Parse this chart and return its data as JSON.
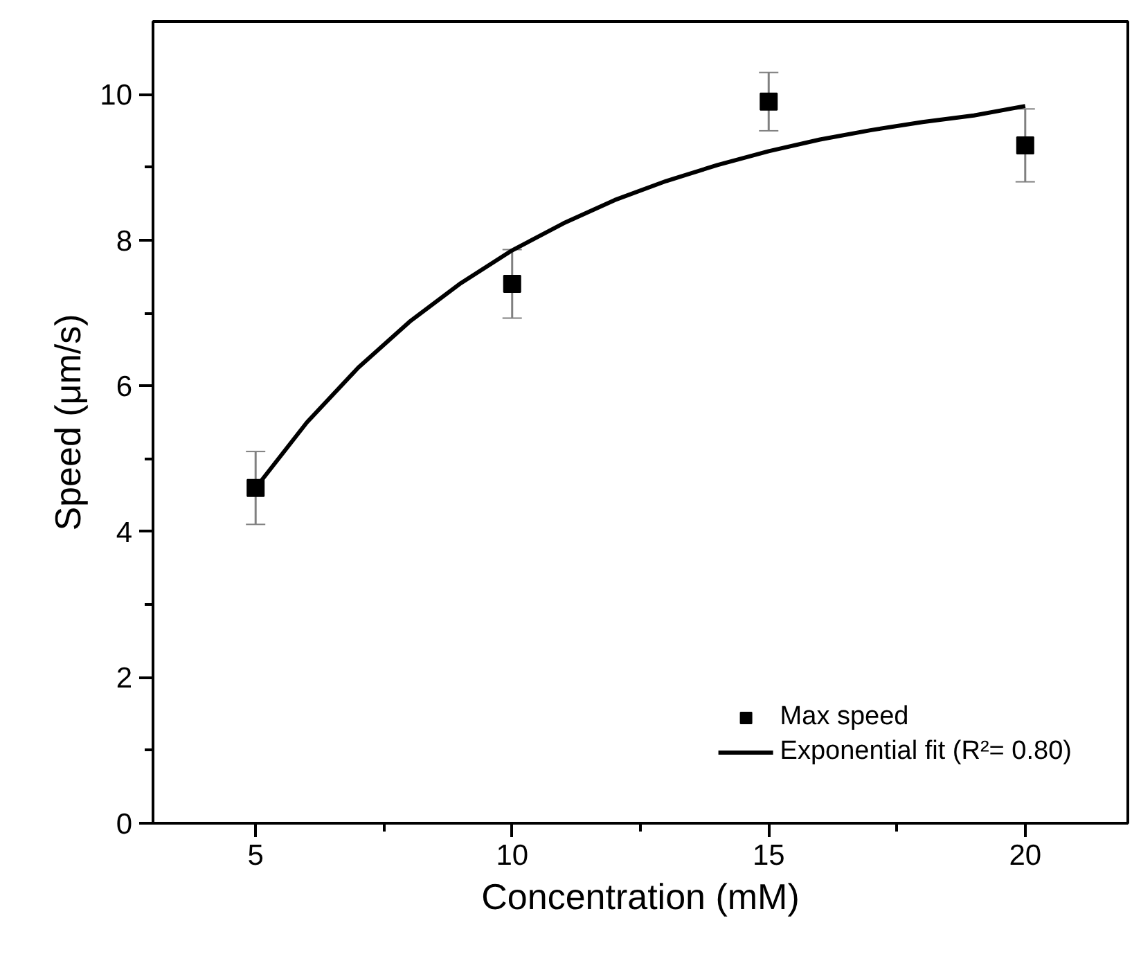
{
  "chart_data": {
    "type": "scatter",
    "xlabel": "Concentration (mM)",
    "ylabel": "Speed (μm/s)",
    "x": [
      5,
      10,
      15,
      20
    ],
    "series": [
      {
        "name": "Max speed",
        "color": "#000000",
        "marker": "square",
        "values": [
          4.6,
          7.4,
          9.9,
          9.3
        ],
        "errors": [
          0.5,
          0.47,
          0.4,
          0.5
        ]
      },
      {
        "name": "Exponential fit (R²= 0.80)",
        "type": "line",
        "color": "#000000",
        "line_style": "solid",
        "x": [
          5,
          6,
          7,
          8,
          9,
          10,
          11,
          12,
          13,
          14,
          15,
          16,
          17,
          18,
          19,
          20
        ],
        "values": [
          4.6,
          5.5,
          6.25,
          6.88,
          7.41,
          7.86,
          8.23,
          8.55,
          8.81,
          9.03,
          9.22,
          9.38,
          9.51,
          9.62,
          9.71,
          9.84
        ]
      }
    ],
    "xlim": [
      3,
      22
    ],
    "ylim": [
      0,
      11
    ],
    "xticks": [
      5,
      {
        "value": 7.5,
        "label": null
      },
      10,
      {
        "value": 12.5,
        "label": null
      },
      15,
      {
        "value": 17.5,
        "label": null
      },
      20
    ],
    "yticks": [
      0,
      {
        "value": 1,
        "label": null
      },
      2,
      {
        "value": 3,
        "label": null
      },
      4,
      {
        "value": 5,
        "label": null
      },
      6,
      {
        "value": 7,
        "label": null
      },
      8,
      {
        "value": 9,
        "label": null
      },
      10
    ],
    "grid": false,
    "legend": "bottom right"
  }
}
